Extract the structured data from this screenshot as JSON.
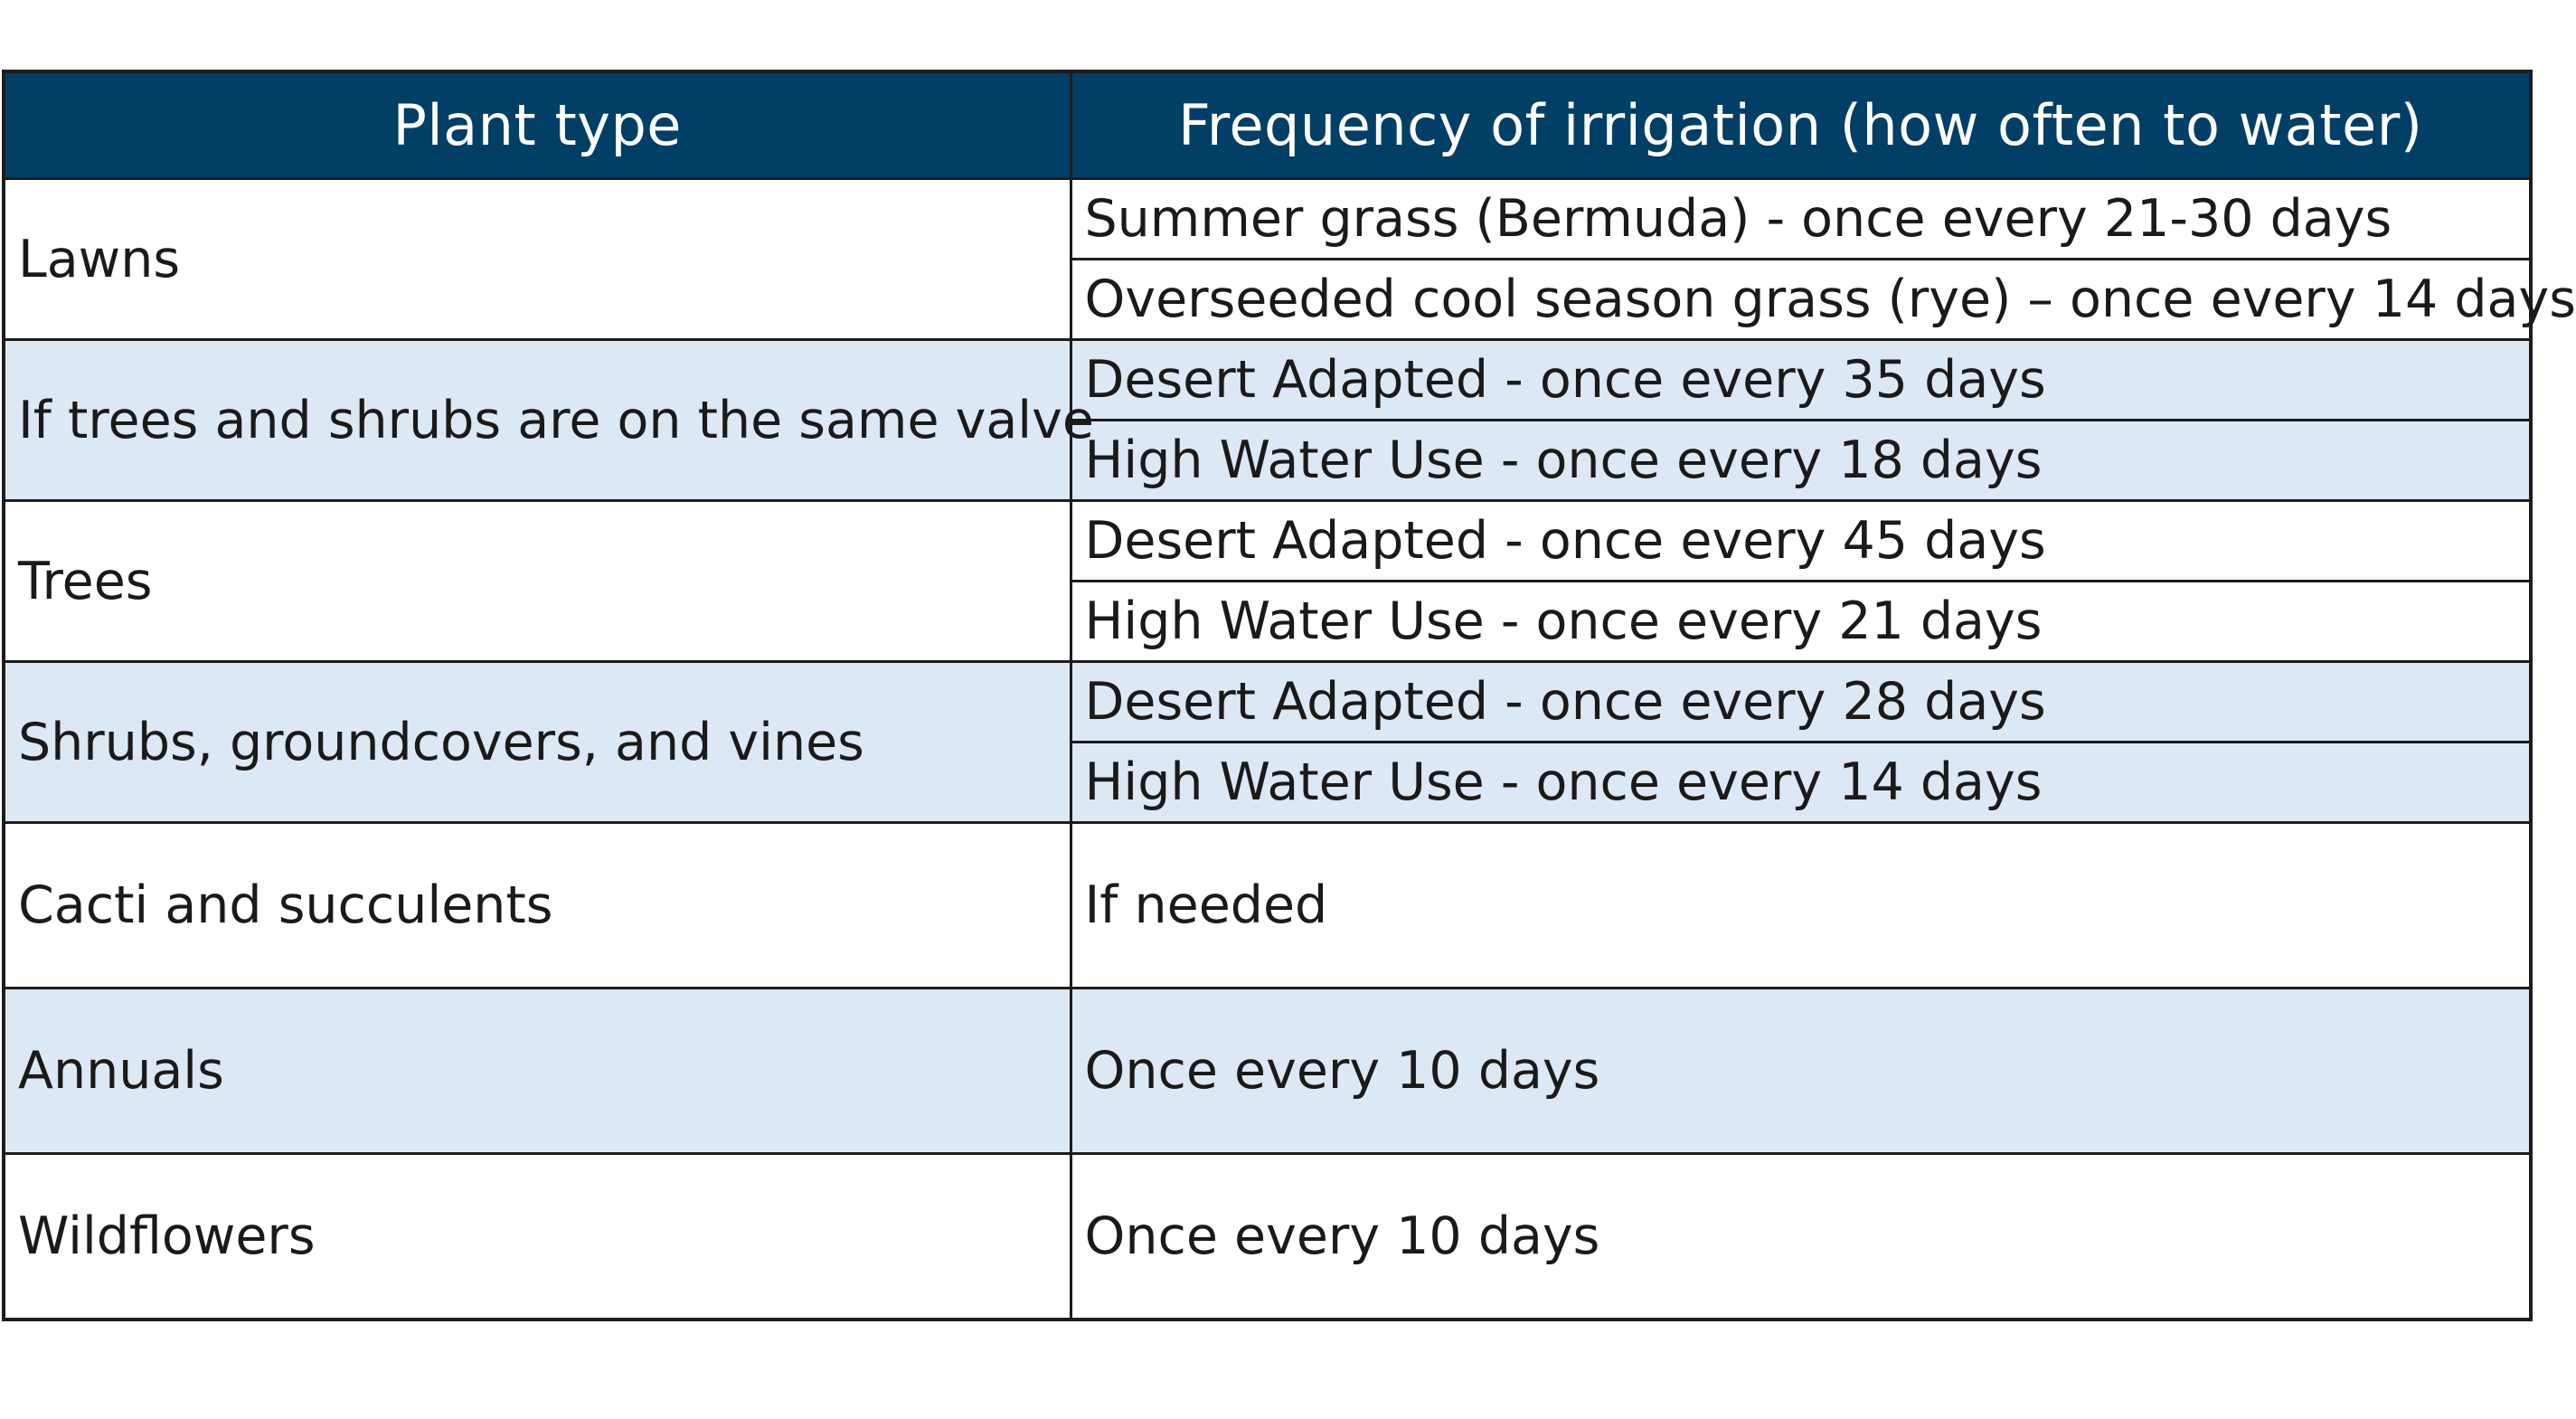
{
  "table": {
    "headers": [
      "Plant type",
      "Frequency of irrigation (how often to water)"
    ],
    "rows": [
      {
        "plant": "Lawns",
        "freq": [
          "Summer grass (Bermuda) - once every 21-30 days",
          "Overseeded cool season grass (rye) – once every 14 days"
        ]
      },
      {
        "plant": "If trees and shrubs are on the same valve",
        "freq": [
          "Desert Adapted - once every 35 days",
          "High Water Use - once every 18 days"
        ]
      },
      {
        "plant": "Trees",
        "freq": [
          "Desert Adapted - once every 45 days",
          "High Water Use - once every 21 days"
        ]
      },
      {
        "plant": "Shrubs, groundcovers, and vines",
        "freq": [
          "Desert Adapted - once every 28 days",
          "High Water Use - once every 14 days"
        ]
      },
      {
        "plant": "Cacti and succulents",
        "freq": [
          "If needed"
        ]
      },
      {
        "plant": "Annuals",
        "freq": [
          "Once every 10 days"
        ]
      },
      {
        "plant": "Wildflowers",
        "freq": [
          "Once every 10 days"
        ]
      }
    ]
  },
  "colors": {
    "header_background": "#023f66",
    "header_text": "#ffffff",
    "shaded_row": "#dde8f5",
    "border": "#1c1c1c"
  }
}
